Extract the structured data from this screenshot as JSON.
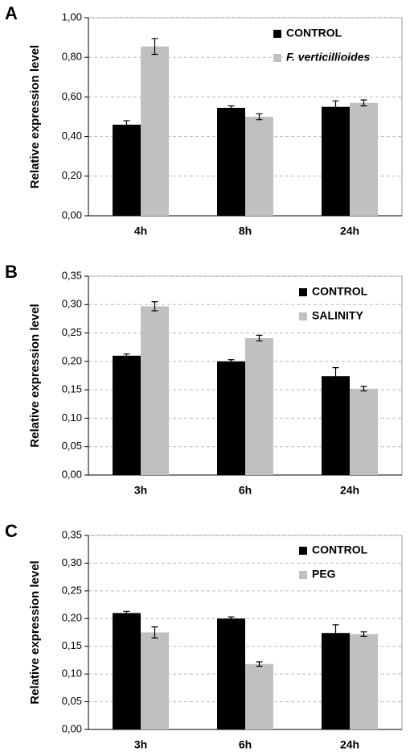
{
  "chart_data": [
    {
      "type": "bar",
      "panel": "A",
      "ylabel": "Relative expression level",
      "categories": [
        "4h",
        "8h",
        "24h"
      ],
      "series": [
        {
          "name": "CONTROL",
          "color": "#000000",
          "values": [
            0.46,
            0.545,
            0.55
          ],
          "errors": [
            0.02,
            0.01,
            0.03
          ]
        },
        {
          "name": "F. verticillioides",
          "color": "#c0c0c0",
          "style": "italic",
          "values": [
            0.855,
            0.5,
            0.57
          ],
          "errors": [
            0.04,
            0.015,
            0.015
          ]
        }
      ],
      "ylim": [
        0,
        1
      ],
      "yticks": [
        {
          "value": 0,
          "label": "0,00"
        },
        {
          "value": 0.2,
          "label": "0,20"
        },
        {
          "value": 0.4,
          "label": "0,40"
        },
        {
          "value": 0.6,
          "label": "0,60"
        },
        {
          "value": 0.8,
          "label": "0,80"
        },
        {
          "value": 1,
          "label": "1,00"
        }
      ],
      "grid": true,
      "legend": "upper right"
    },
    {
      "type": "bar",
      "panel": "B",
      "ylabel": "Relative expression level",
      "categories": [
        "3h",
        "6h",
        "24h"
      ],
      "series": [
        {
          "name": "CONTROL",
          "color": "#000000",
          "values": [
            0.21,
            0.2,
            0.174
          ],
          "errors": [
            0.003,
            0.003,
            0.015
          ]
        },
        {
          "name": "SALINITY",
          "color": "#c0c0c0",
          "values": [
            0.297,
            0.241,
            0.152
          ],
          "errors": [
            0.008,
            0.005,
            0.004
          ]
        }
      ],
      "ylim": [
        0,
        0.35
      ],
      "yticks": [
        {
          "value": 0,
          "label": "0,00"
        },
        {
          "value": 0.05,
          "label": "0,05"
        },
        {
          "value": 0.1,
          "label": "0,10"
        },
        {
          "value": 0.15,
          "label": "0,15"
        },
        {
          "value": 0.2,
          "label": "0,20"
        },
        {
          "value": 0.25,
          "label": "0,25"
        },
        {
          "value": 0.3,
          "label": "0,30"
        },
        {
          "value": 0.35,
          "label": "0,35"
        }
      ],
      "grid": true,
      "legend": "upper right"
    },
    {
      "type": "bar",
      "panel": "C",
      "ylabel": "Relative expression level",
      "categories": [
        "3h",
        "6h",
        "24h"
      ],
      "series": [
        {
          "name": "CONTROL",
          "color": "#000000",
          "values": [
            0.21,
            0.2,
            0.174
          ],
          "errors": [
            0.003,
            0.003,
            0.015
          ]
        },
        {
          "name": "PEG",
          "color": "#c0c0c0",
          "values": [
            0.175,
            0.118,
            0.172
          ],
          "errors": [
            0.01,
            0.004,
            0.004
          ]
        }
      ],
      "ylim": [
        0,
        0.35
      ],
      "yticks": [
        {
          "value": 0,
          "label": "0,00"
        },
        {
          "value": 0.05,
          "label": "0,05"
        },
        {
          "value": 0.1,
          "label": "0,10"
        },
        {
          "value": 0.15,
          "label": "0,15"
        },
        {
          "value": 0.2,
          "label": "0,20"
        },
        {
          "value": 0.25,
          "label": "0,25"
        },
        {
          "value": 0.3,
          "label": "0,30"
        },
        {
          "value": 0.35,
          "label": "0,35"
        }
      ],
      "grid": true,
      "legend": "upper right"
    }
  ]
}
